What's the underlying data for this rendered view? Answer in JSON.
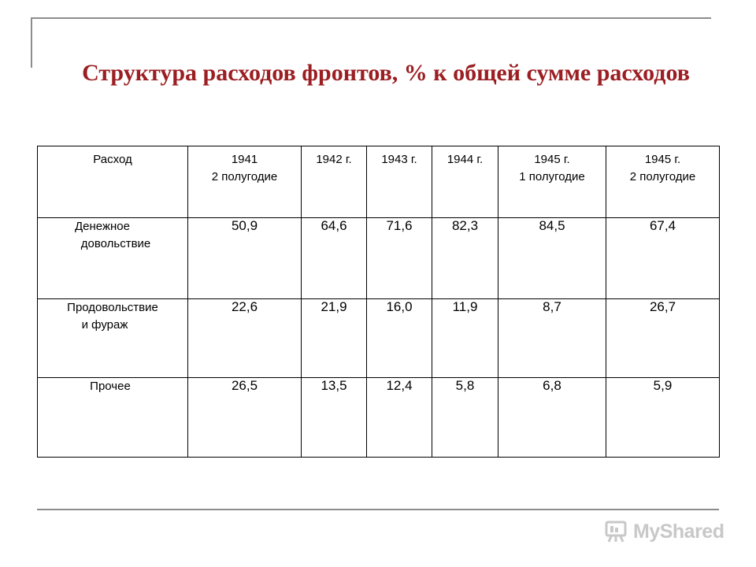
{
  "title": "Структура расходов фронтов, % к общей сумме расходов",
  "table": {
    "headers": [
      [
        "Расход"
      ],
      [
        "1941",
        "2 полугодие"
      ],
      [
        "1942 г."
      ],
      [
        "1943 г."
      ],
      [
        "1944 г."
      ],
      [
        "1945 г.",
        "1 полугодие"
      ],
      [
        "1945 г.",
        "2 полугодие"
      ]
    ],
    "rows": [
      {
        "label": [
          "Денежное",
          "довольствие"
        ],
        "values": [
          "50,9",
          "64,6",
          "71,6",
          "82,3",
          "84,5",
          "67,4"
        ]
      },
      {
        "label": [
          "Продовольствие",
          "и фураж"
        ],
        "values": [
          "22,6",
          "21,9",
          "16,0",
          "11,9",
          "8,7",
          "26,7"
        ]
      },
      {
        "label": [
          "Прочее"
        ],
        "values": [
          "26,5",
          "13,5",
          "12,4",
          "5,8",
          "6,8",
          "5,9"
        ]
      }
    ]
  },
  "watermark": {
    "text": "MyShared",
    "icon": "slides-icon"
  }
}
